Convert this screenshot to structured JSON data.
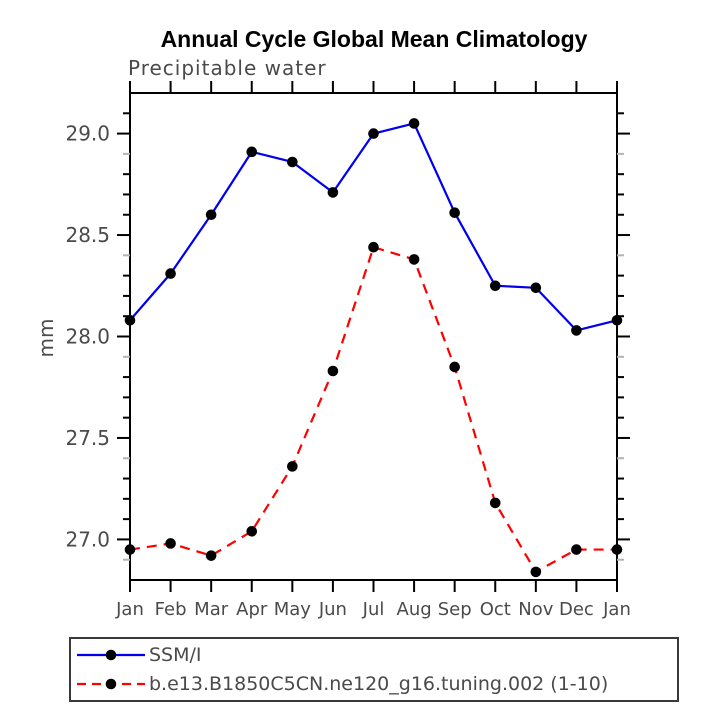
{
  "chart_data": {
    "type": "line",
    "title": "Annual Cycle Global Mean Climatology",
    "subtitle": "Precipitable water",
    "ylabel": "mm",
    "xlabel": "",
    "categories": [
      "Jan",
      "Feb",
      "Mar",
      "Apr",
      "May",
      "Jun",
      "Jul",
      "Aug",
      "Sep",
      "Oct",
      "Nov",
      "Dec",
      "Jan"
    ],
    "ylim": [
      26.8,
      29.2
    ],
    "ytick_major": [
      27.0,
      27.5,
      28.0,
      28.5,
      29.0
    ],
    "ytick_minor_step": 0.1,
    "grid": false,
    "legend_position": "bottom-left-box",
    "series": [
      {
        "name": "SSM/I",
        "style": "solid",
        "color": "#0000ee",
        "marker": "black-dot",
        "values": [
          28.08,
          28.31,
          28.6,
          28.91,
          28.86,
          28.71,
          29.0,
          29.05,
          28.61,
          28.25,
          28.24,
          28.03,
          28.08
        ]
      },
      {
        "name": "b.e13.B1850C5CN.ne120_g16.tuning.002 (1-10)",
        "style": "dashed",
        "color": "#ff0000",
        "marker": "black-dot",
        "values": [
          26.95,
          26.98,
          26.92,
          27.04,
          27.36,
          27.83,
          28.44,
          28.38,
          27.85,
          27.18,
          26.84,
          26.95,
          26.95
        ]
      }
    ]
  },
  "colors": {
    "axis": "#000000",
    "text_gray": "#4a4a4a",
    "minor_tick_light": "#b3b3b3",
    "marker": "#000000",
    "background": "#ffffff",
    "legend_border": "#3a3a3a"
  }
}
